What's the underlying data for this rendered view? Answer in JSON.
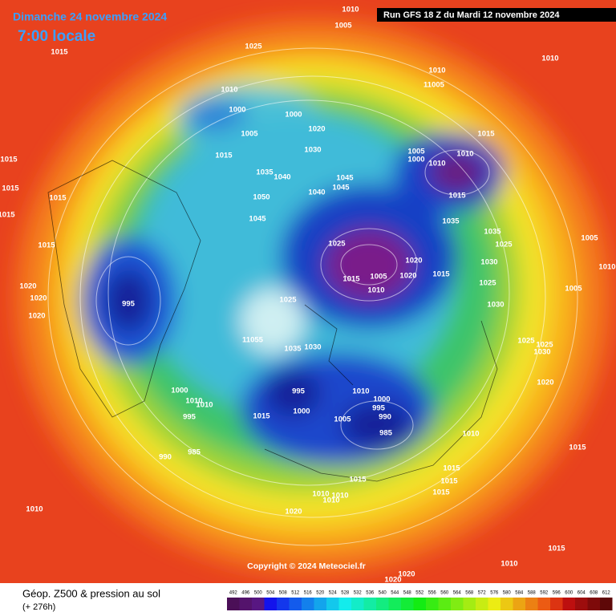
{
  "header": {
    "date": "Dimanche 24 novembre 2024",
    "time": "7:00 locale",
    "run": "Run GFS 18 Z du Mardi 12 novembre 2024"
  },
  "map": {
    "pressure_labels": [
      "1010",
      "1005",
      "1015",
      "1025",
      "1010",
      "1010",
      "11005",
      "1010",
      "1000",
      "1000",
      "1020",
      "1005",
      "1015",
      "1030",
      "1015",
      "1015",
      "1005",
      "1000",
      "1010",
      "1010",
      "1035",
      "1040",
      "1045",
      "1045",
      "1040",
      "1015",
      "1015",
      "1050",
      "1015",
      "1015",
      "1045",
      "1035",
      "1035",
      "1005",
      "1025",
      "1015",
      "1025",
      "1020",
      "1030",
      "1010",
      "1020",
      "1015",
      "1005",
      "1020",
      "1015",
      "1025",
      "1005",
      "995",
      "1020",
      "1010",
      "1025",
      "1030",
      "1020",
      "1025",
      "11055",
      "1035",
      "1030",
      "1025",
      "1030",
      "995",
      "1010",
      "1000",
      "1000",
      "1010",
      "1010",
      "995",
      "1000",
      "1020",
      "1015",
      "995",
      "1005",
      "990",
      "985",
      "1010",
      "985",
      "990",
      "1015",
      "1015",
      "1015",
      "1015",
      "1010",
      "1010",
      "1010",
      "1015",
      "1010",
      "1020",
      "1010",
      "1015",
      "1020",
      "1020"
    ]
  },
  "footer": {
    "copyright": "Copyright © 2024 Meteociel.fr",
    "title": "Géop. Z500 & pression au sol",
    "forecast": "(+ 276h)",
    "scale": [
      492,
      496,
      500,
      504,
      508,
      512,
      516,
      520,
      524,
      528,
      532,
      536,
      540,
      544,
      548,
      552,
      556,
      560,
      564,
      568,
      572,
      576,
      580,
      584,
      588,
      592,
      596,
      600,
      604,
      608,
      612
    ]
  }
}
